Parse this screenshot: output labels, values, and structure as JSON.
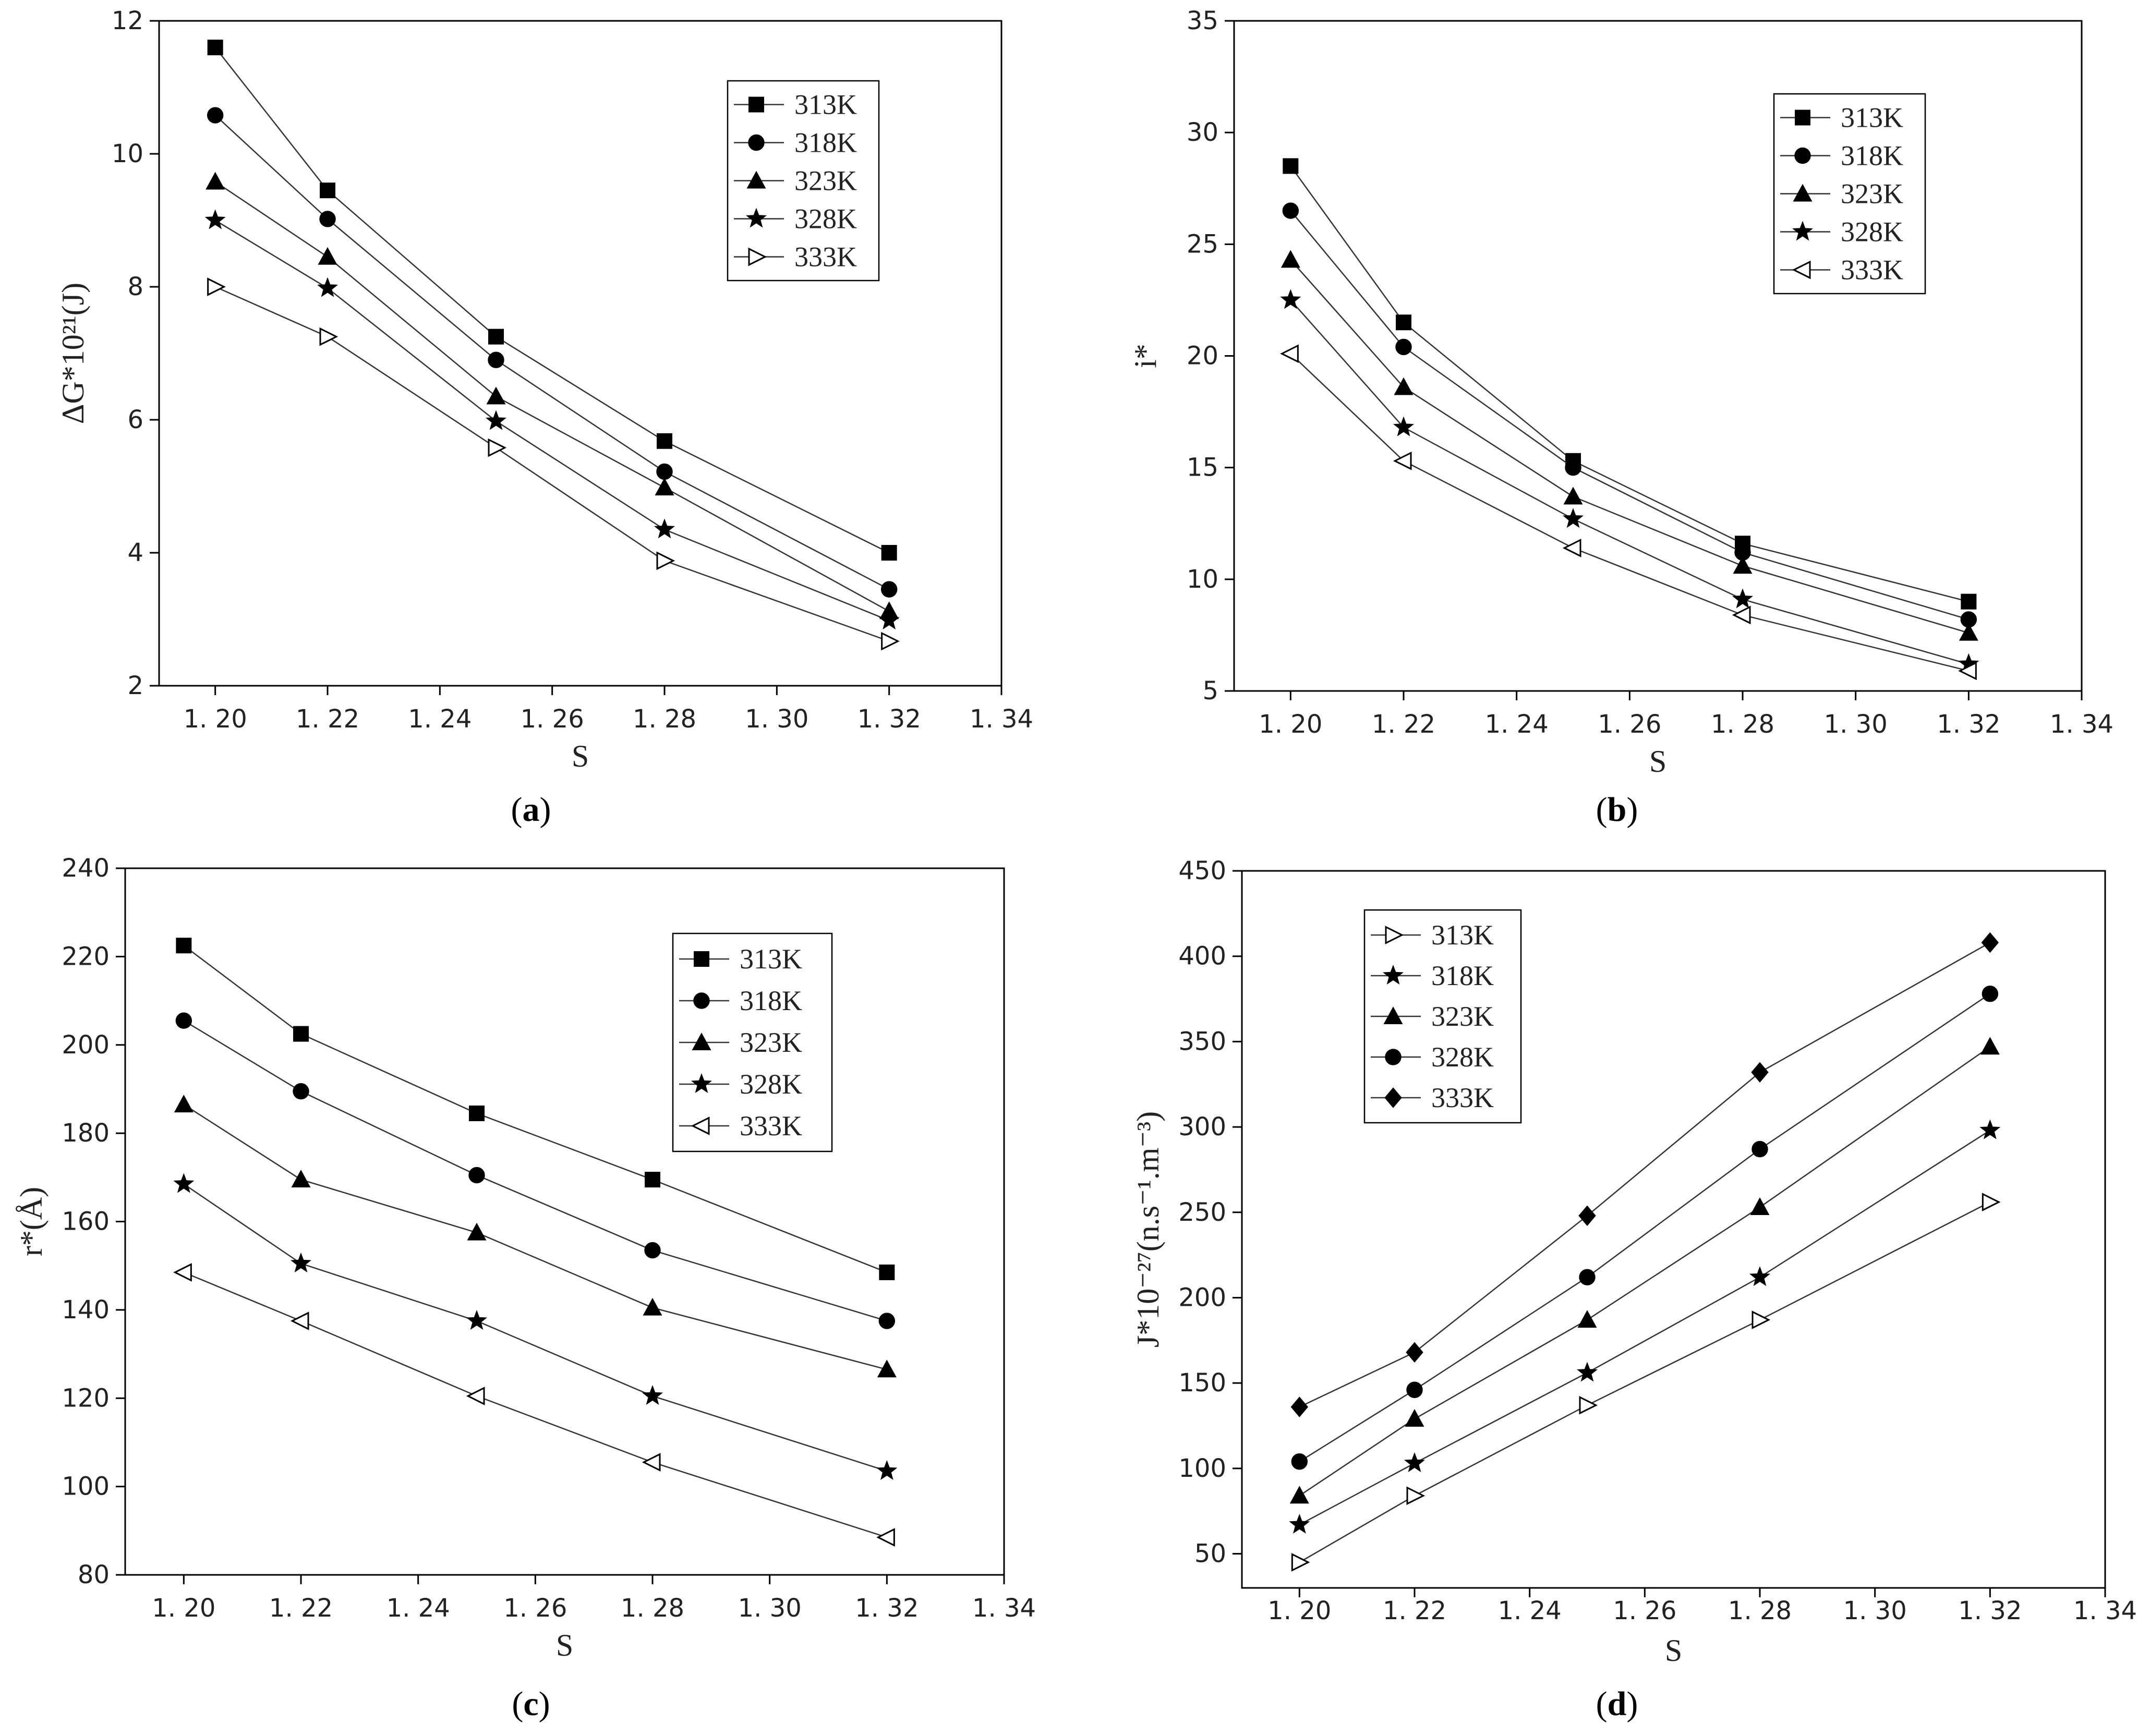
{
  "chart_data": [
    {
      "id": "a",
      "type": "line",
      "caption": "a",
      "xlabel": "S",
      "ylabel": "ΔG*10²¹(J)",
      "xlim": [
        1.19,
        1.34
      ],
      "ylim": [
        2,
        12
      ],
      "xticks": [
        1.2,
        1.22,
        1.24,
        1.26,
        1.28,
        1.3,
        1.32,
        1.34
      ],
      "xtick_labels": [
        "1. 20",
        "1. 22",
        "1. 24",
        "1. 26",
        "1. 28",
        "1. 30",
        "1. 32",
        "1. 34"
      ],
      "yticks": [
        2,
        4,
        6,
        8,
        10,
        12
      ],
      "ytick_labels": [
        "2",
        "4",
        "6",
        "8",
        "10",
        "12"
      ],
      "legend": "top-right",
      "x": [
        1.2,
        1.22,
        1.25,
        1.28,
        1.32
      ],
      "series": [
        {
          "name": "313K",
          "marker": "square",
          "values": [
            11.6,
            9.45,
            7.25,
            5.68,
            4.0
          ]
        },
        {
          "name": "318K",
          "marker": "circle",
          "values": [
            10.58,
            9.02,
            6.9,
            5.22,
            3.45
          ]
        },
        {
          "name": "323K",
          "marker": "triangle-up",
          "values": [
            9.58,
            8.45,
            6.35,
            4.98,
            3.12
          ]
        },
        {
          "name": "328K",
          "marker": "star",
          "values": [
            9.0,
            7.98,
            5.98,
            4.35,
            2.98
          ]
        },
        {
          "name": "333K",
          "marker": "triangle-right-open",
          "values": [
            8.0,
            7.25,
            5.58,
            3.88,
            2.67
          ]
        }
      ]
    },
    {
      "id": "b",
      "type": "line",
      "caption": "b",
      "xlabel": "S",
      "ylabel": "i*",
      "xlim": [
        1.19,
        1.34
      ],
      "ylim": [
        5,
        35
      ],
      "xticks": [
        1.2,
        1.22,
        1.24,
        1.26,
        1.28,
        1.3,
        1.32,
        1.34
      ],
      "xtick_labels": [
        "1. 20",
        "1. 22",
        "1. 24",
        "1. 26",
        "1. 28",
        "1. 30",
        "1. 32",
        "1. 34"
      ],
      "yticks": [
        5,
        10,
        15,
        20,
        25,
        30,
        35
      ],
      "ytick_labels": [
        "5",
        "10",
        "15",
        "20",
        "25",
        "30",
        "35"
      ],
      "legend": "top-right",
      "x": [
        1.2,
        1.22,
        1.25,
        1.28,
        1.32
      ],
      "series": [
        {
          "name": "313K",
          "marker": "square",
          "values": [
            28.5,
            21.5,
            15.3,
            11.6,
            9.0
          ]
        },
        {
          "name": "318K",
          "marker": "circle",
          "values": [
            26.5,
            20.4,
            15.0,
            11.2,
            8.2
          ]
        },
        {
          "name": "323K",
          "marker": "triangle-up",
          "values": [
            24.3,
            18.6,
            13.7,
            10.6,
            7.6
          ]
        },
        {
          "name": "328K",
          "marker": "star",
          "values": [
            22.5,
            16.8,
            12.7,
            9.1,
            6.2
          ]
        },
        {
          "name": "333K",
          "marker": "triangle-left-open",
          "values": [
            20.1,
            15.3,
            11.4,
            8.4,
            5.9
          ]
        }
      ]
    },
    {
      "id": "c",
      "type": "line",
      "caption": "c",
      "xlabel": "S",
      "ylabel": "r*(Å)",
      "xlim": [
        1.19,
        1.34
      ],
      "ylim": [
        80,
        240
      ],
      "xticks": [
        1.2,
        1.22,
        1.24,
        1.26,
        1.28,
        1.3,
        1.32,
        1.34
      ],
      "xtick_labels": [
        "1. 20",
        "1. 22",
        "1. 24",
        "1. 26",
        "1. 28",
        "1. 30",
        "1. 32",
        "1. 34"
      ],
      "yticks": [
        80,
        100,
        120,
        140,
        160,
        180,
        200,
        220,
        240
      ],
      "ytick_labels": [
        "80",
        "100",
        "120",
        "140",
        "160",
        "180",
        "200",
        "220",
        "240"
      ],
      "legend": "top-right",
      "x": [
        1.2,
        1.22,
        1.25,
        1.28,
        1.32
      ],
      "series": [
        {
          "name": "313K",
          "marker": "square",
          "values": [
            222.5,
            202.5,
            184.5,
            169.5,
            148.5
          ]
        },
        {
          "name": "318K",
          "marker": "circle",
          "values": [
            205.5,
            189.5,
            170.5,
            153.5,
            137.5
          ]
        },
        {
          "name": "323K",
          "marker": "triangle-up",
          "values": [
            186.5,
            169.5,
            157.5,
            140.5,
            126.5
          ]
        },
        {
          "name": "328K",
          "marker": "star",
          "values": [
            168.5,
            150.5,
            137.5,
            120.5,
            103.5
          ]
        },
        {
          "name": "333K",
          "marker": "triangle-left-open",
          "values": [
            148.5,
            137.5,
            120.5,
            105.5,
            88.5
          ]
        }
      ]
    },
    {
      "id": "d",
      "type": "line",
      "caption": "d",
      "xlabel": "S",
      "ylabel": "J*10⁻²⁷(n.s⁻¹.m⁻³)",
      "xlim": [
        1.19,
        1.34
      ],
      "ylim": [
        30,
        450
      ],
      "xticks": [
        1.2,
        1.22,
        1.24,
        1.26,
        1.28,
        1.3,
        1.32,
        1.34
      ],
      "xtick_labels": [
        "1. 20",
        "1. 22",
        "1. 24",
        "1. 26",
        "1. 28",
        "1. 30",
        "1. 32",
        "1. 34"
      ],
      "yticks": [
        50,
        100,
        150,
        200,
        250,
        300,
        350,
        400,
        450
      ],
      "ytick_labels": [
        "50",
        "100",
        "150",
        "200",
        "250",
        "300",
        "350",
        "400",
        "450"
      ],
      "legend": "top-left",
      "x": [
        1.2,
        1.22,
        1.25,
        1.28,
        1.32
      ],
      "series": [
        {
          "name": "313K",
          "marker": "triangle-right-open",
          "values": [
            45,
            84,
            137,
            187,
            256
          ]
        },
        {
          "name": "318K",
          "marker": "star",
          "values": [
            67,
            103,
            156,
            212,
            298
          ]
        },
        {
          "name": "323K",
          "marker": "triangle-up",
          "values": [
            84,
            129,
            187,
            253,
            347
          ]
        },
        {
          "name": "328K",
          "marker": "circle",
          "values": [
            104,
            146,
            212,
            287,
            378
          ]
        },
        {
          "name": "333K",
          "marker": "diamond",
          "values": [
            136,
            168,
            248,
            332,
            408
          ]
        }
      ]
    }
  ]
}
